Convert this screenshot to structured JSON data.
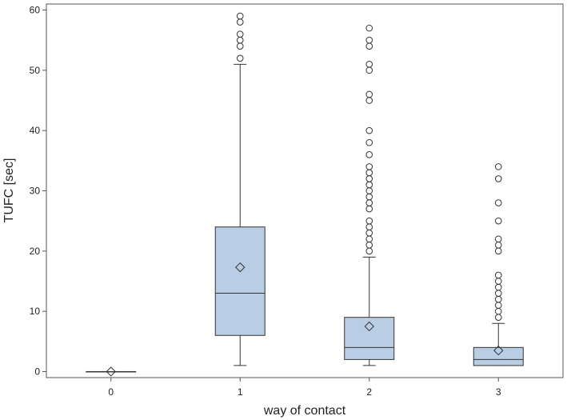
{
  "chart_data": {
    "type": "boxplot",
    "title": "",
    "xlabel": "way of contact",
    "ylabel": "TUFC [sec]",
    "ylim": [
      -1,
      61
    ],
    "yticks": [
      0,
      10,
      20,
      30,
      40,
      50,
      60
    ],
    "grid": false,
    "legend": "none",
    "box_fill": "#b9cde5",
    "stroke": "#333333",
    "categories": [
      "0",
      "1",
      "2",
      "3"
    ],
    "groups": [
      {
        "category": "0",
        "min": 0,
        "q1": 0,
        "median": 0,
        "q3": 0,
        "max": 0,
        "mean": 0,
        "outliers": []
      },
      {
        "category": "1",
        "min": 1,
        "q1": 6,
        "median": 13,
        "q3": 24,
        "max": 51,
        "mean": 17.3,
        "outliers": [
          52,
          54,
          55,
          56,
          58,
          59
        ]
      },
      {
        "category": "2",
        "min": 1,
        "q1": 2,
        "median": 4,
        "q3": 9,
        "max": 19,
        "mean": 7.5,
        "outliers": [
          20,
          21,
          22,
          23,
          24,
          25,
          27,
          28,
          29,
          30,
          31,
          32,
          33,
          34,
          36,
          38,
          40,
          45,
          46,
          50,
          51,
          54,
          55,
          57
        ]
      },
      {
        "category": "3",
        "min": 1,
        "q1": 1,
        "median": 2,
        "q3": 4,
        "max": 8,
        "mean": 3.5,
        "outliers": [
          9,
          10,
          11,
          12,
          13,
          14,
          15,
          16,
          20,
          21,
          22,
          25,
          28,
          32,
          34
        ]
      }
    ]
  }
}
